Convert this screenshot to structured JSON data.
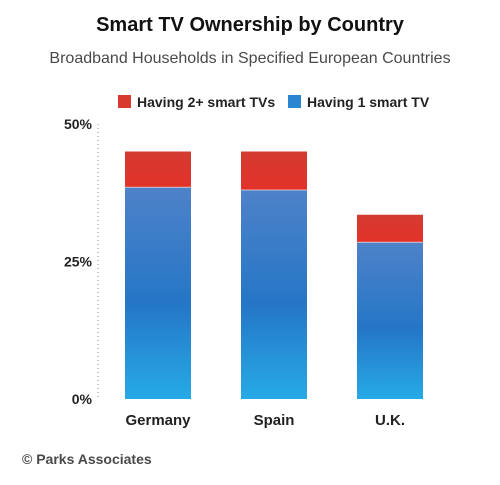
{
  "title": "Smart TV Ownership by Country",
  "subtitle": "Broadband Households in Specified European Countries",
  "footer": "© Parks Associates",
  "chart_data": {
    "type": "bar",
    "stacked": true,
    "categories": [
      "Germany",
      "Spain",
      "U.K."
    ],
    "series": [
      {
        "name": "Having 1 smart TV",
        "values": [
          38.5,
          38.0,
          28.5
        ],
        "color": "#2a86d0"
      },
      {
        "name": "Having 2+ smart TVs",
        "values": [
          6.5,
          7.0,
          5.0
        ],
        "color": "#d93a2f"
      }
    ],
    "legend_order": [
      "Having 2+ smart TVs",
      "Having 1 smart TV"
    ],
    "legend_position": "top",
    "ylim": [
      0,
      50
    ],
    "yticks": [
      0,
      25,
      50
    ],
    "ytick_labels": [
      "0%",
      "25%",
      "50%"
    ],
    "y_axis_dotted": true,
    "grid": false
  }
}
